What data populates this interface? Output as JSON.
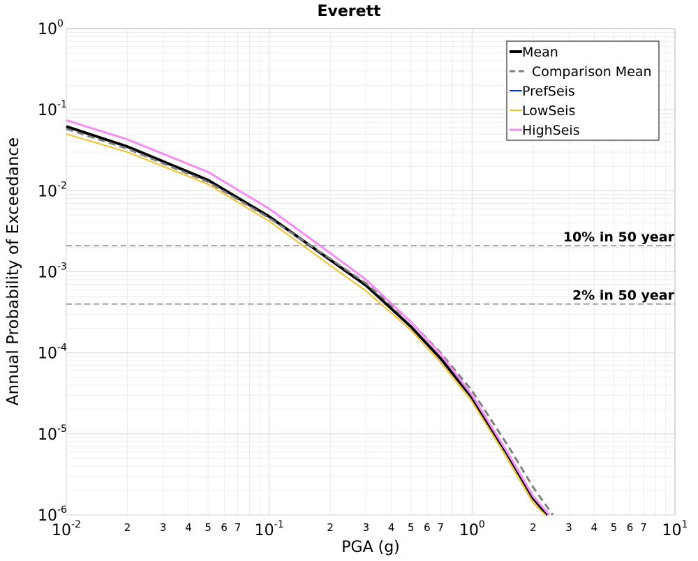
{
  "chart_data": {
    "type": "line",
    "title": "Everett",
    "xlabel": "PGA (g)",
    "ylabel": "Annual Probability of Exceedance",
    "xscale": "log",
    "yscale": "log",
    "xlim": [
      0.01,
      10
    ],
    "ylim": [
      1e-06,
      1
    ],
    "grid": true,
    "legend_position": "top-right",
    "x_major_ticks": [
      {
        "value": 0.01,
        "base": "10",
        "exp": "-2"
      },
      {
        "value": 0.1,
        "base": "10",
        "exp": "-1"
      },
      {
        "value": 1,
        "base": "10",
        "exp": "0"
      },
      {
        "value": 10,
        "base": "10",
        "exp": "1"
      }
    ],
    "x_minor_tick_labels": [
      "2",
      "3",
      "4",
      "5",
      "6",
      "7"
    ],
    "y_major_ticks": [
      {
        "value": 1,
        "base": "10",
        "exp": "0"
      },
      {
        "value": 0.1,
        "base": "10",
        "exp": "-1"
      },
      {
        "value": 0.01,
        "base": "10",
        "exp": "-2"
      },
      {
        "value": 0.001,
        "base": "10",
        "exp": "-3"
      },
      {
        "value": 0.0001,
        "base": "10",
        "exp": "-4"
      },
      {
        "value": 1e-05,
        "base": "10",
        "exp": "-5"
      },
      {
        "value": 1e-06,
        "base": "10",
        "exp": "-6"
      }
    ],
    "reference_lines": [
      {
        "label": "10% in 50 year",
        "y": 0.0021,
        "color": "#808080"
      },
      {
        "label": "2% in 50 year",
        "y": 0.0004,
        "color": "#808080"
      }
    ],
    "series": [
      {
        "name": "PrefSeis",
        "color": "#0033ff",
        "style": "solid",
        "width": 2,
        "x": [
          0.01,
          0.02,
          0.05,
          0.1,
          0.2,
          0.3,
          0.5,
          0.7,
          1.0,
          1.5,
          2.0,
          2.35
        ],
        "y": [
          0.062,
          0.035,
          0.0135,
          0.0048,
          0.0014,
          0.00068,
          0.00021,
          8.5e-05,
          2.8e-05,
          5.5e-06,
          1.6e-06,
          1e-06
        ]
      },
      {
        "name": "Mean",
        "color": "#000000",
        "style": "solid",
        "width": 4,
        "x": [
          0.01,
          0.02,
          0.05,
          0.1,
          0.2,
          0.3,
          0.5,
          0.7,
          1.0,
          1.5,
          2.0,
          2.35
        ],
        "y": [
          0.062,
          0.035,
          0.0135,
          0.0048,
          0.0014,
          0.00068,
          0.00021,
          8.5e-05,
          2.8e-05,
          5.5e-06,
          1.6e-06,
          1e-06
        ]
      },
      {
        "name": "Comparison Mean",
        "color": "#808080",
        "style": "dashed",
        "width": 3,
        "x": [
          0.01,
          0.02,
          0.05,
          0.1,
          0.2,
          0.3,
          0.5,
          0.7,
          1.0,
          1.5,
          2.0,
          2.5
        ],
        "y": [
          0.058,
          0.033,
          0.0128,
          0.0046,
          0.00145,
          0.00072,
          0.00024,
          0.0001,
          3.4e-05,
          7.2e-06,
          2.2e-06,
          1e-06
        ]
      },
      {
        "name": "LowSeis",
        "color": "#f2c12e",
        "style": "solid",
        "width": 2,
        "x": [
          0.01,
          0.02,
          0.05,
          0.1,
          0.2,
          0.3,
          0.5,
          0.7,
          1.0,
          1.5,
          2.0,
          2.3
        ],
        "y": [
          0.05,
          0.03,
          0.012,
          0.0042,
          0.0012,
          0.00058,
          0.00019,
          7.6e-05,
          2.5e-05,
          4.8e-06,
          1.4e-06,
          1e-06
        ]
      },
      {
        "name": "HighSeis",
        "color": "#f48df4",
        "style": "solid",
        "width": 3,
        "x": [
          0.01,
          0.02,
          0.05,
          0.1,
          0.2,
          0.3,
          0.5,
          0.7,
          1.0,
          1.5,
          2.0,
          2.4
        ],
        "y": [
          0.074,
          0.043,
          0.017,
          0.006,
          0.0017,
          0.0008,
          0.00024,
          9.6e-05,
          3e-05,
          5.8e-06,
          1.7e-06,
          1e-06
        ]
      }
    ],
    "legend_order": [
      "Mean",
      "Comparison Mean",
      "PrefSeis",
      "LowSeis",
      "HighSeis"
    ]
  }
}
